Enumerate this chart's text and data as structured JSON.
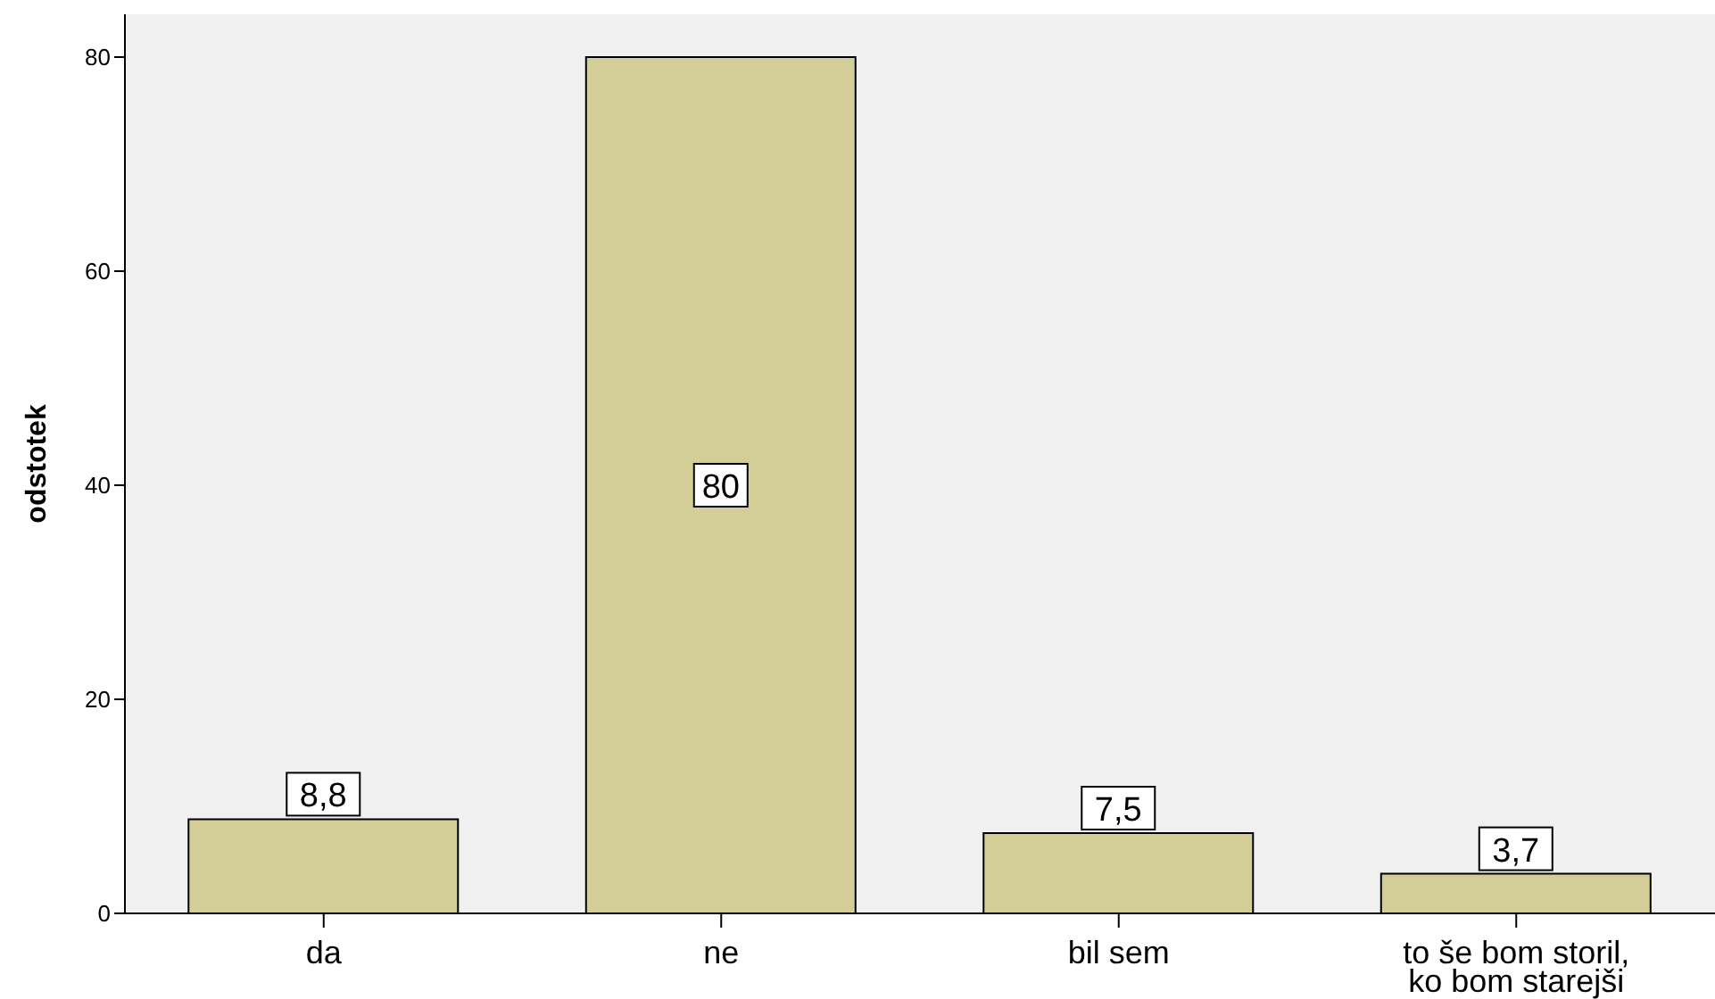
{
  "chart_data": {
    "type": "bar",
    "ylabel": "odstotek",
    "categories": [
      "da",
      "ne",
      "bil sem",
      "to še bom storil, ko bom starejši"
    ],
    "values": [
      8.8,
      80,
      7.5,
      3.7
    ],
    "value_labels": [
      "8,8",
      "80",
      "7,5",
      "3,7"
    ],
    "color": "#d3cd98",
    "ylim": [
      0,
      84
    ],
    "yticks": [
      0,
      20,
      40,
      60,
      80
    ],
    "grid": false,
    "legend": false
  }
}
